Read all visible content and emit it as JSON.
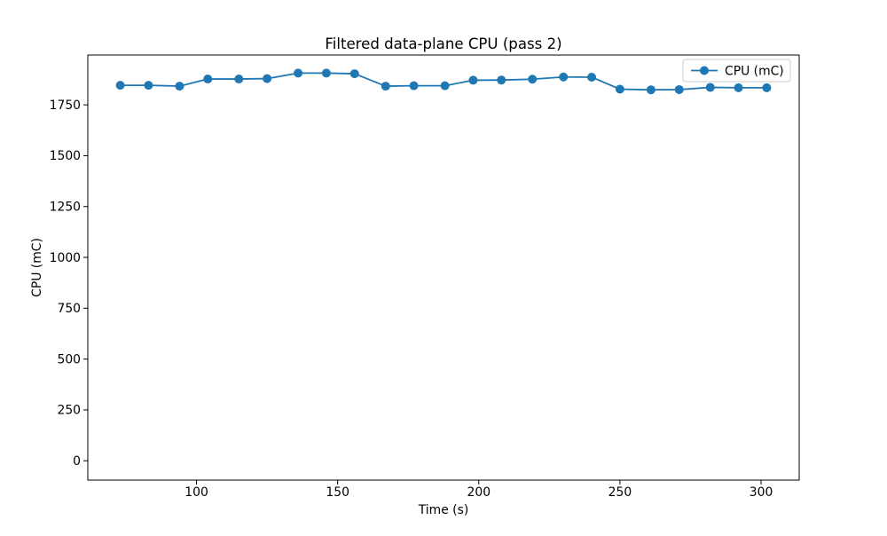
{
  "figure": {
    "background": "#ffffff"
  },
  "chart_data": {
    "type": "line",
    "title": "Filtered data-plane CPU (pass 2)",
    "xlabel": "Time (s)",
    "ylabel": "CPU (mC)",
    "x": [
      73,
      83,
      94,
      104,
      115,
      125,
      136,
      146,
      156,
      167,
      177,
      188,
      198,
      208,
      219,
      230,
      240,
      250,
      261,
      271,
      282,
      292,
      302
    ],
    "series": [
      {
        "name": "CPU (mC)",
        "color": "#1f77b4",
        "marker": "circle",
        "values": [
          1846,
          1846,
          1842,
          1877,
          1877,
          1879,
          1906,
          1906,
          1903,
          1842,
          1844,
          1844,
          1871,
          1872,
          1876,
          1887,
          1886,
          1827,
          1824,
          1825,
          1836,
          1834,
          1834
        ]
      }
    ],
    "xlim": [
      61.5,
      313.5
    ],
    "ylim": [
      -95,
      1995
    ],
    "xticks": [
      100,
      150,
      200,
      250,
      300
    ],
    "yticks": [
      0,
      250,
      500,
      750,
      1000,
      1250,
      1500,
      1750
    ],
    "grid": false,
    "legend": {
      "label": "CPU (mC)",
      "position": "upper right"
    },
    "axis_color": "#000000",
    "frame_on": true
  }
}
